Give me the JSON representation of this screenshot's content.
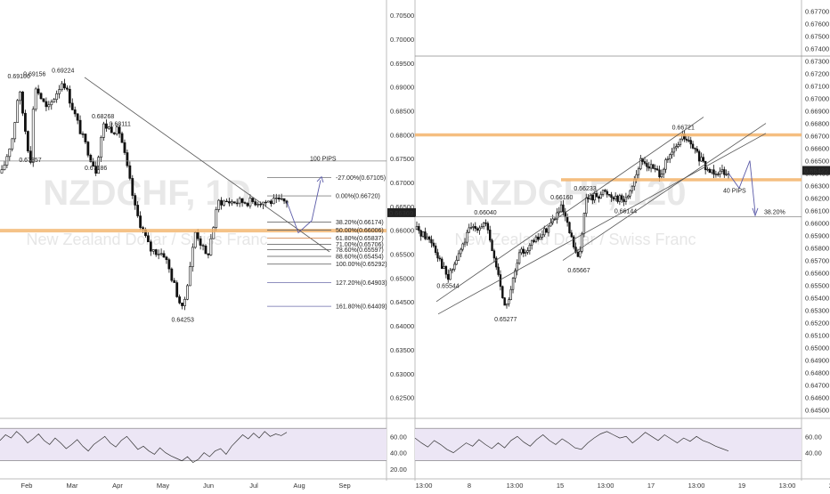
{
  "chart_data": [
    {
      "type": "candlestick",
      "symbol_watermark": "NZDCHF, 1D",
      "name_watermark": "New Zealand Dollar / Swiss Franc",
      "x_ticks": [
        "Feb",
        "Mar",
        "Apr",
        "May",
        "Jun",
        "Jul",
        "Aug",
        "Sep"
      ],
      "y_ticks": [
        "0.70500",
        "0.70000",
        "0.69500",
        "0.69000",
        "0.68500",
        "0.68000",
        "0.67500",
        "0.67000",
        "0.66500",
        "0.66000",
        "0.65500",
        "0.65000",
        "0.64500",
        "0.64000",
        "0.63500",
        "0.63000",
        "0.62500"
      ],
      "ylim": [
        0.6212,
        0.7082
      ],
      "last_price": "0.66369",
      "swing_labels": [
        {
          "text": "0.69106",
          "t": 0.06,
          "y": 0.69106
        },
        {
          "text": "0.69156",
          "t": 0.115,
          "y": 0.69156
        },
        {
          "text": "0.69224",
          "t": 0.215,
          "y": 0.69224
        },
        {
          "text": "0.68268",
          "t": 0.355,
          "y": 0.68268
        },
        {
          "text": "0.68111",
          "t": 0.415,
          "y": 0.68111
        },
        {
          "text": "0.67357",
          "t": 0.1,
          "y": 0.67357
        },
        {
          "text": "0.67186",
          "t": 0.33,
          "y": 0.67186
        },
        {
          "text": "0.64253",
          "t": 0.635,
          "y": 0.64253
        }
      ],
      "fib_levels": [
        {
          "text": "-27.00%(0.67105)",
          "y": 0.67105
        },
        {
          "text": "0.00%(0.66720)",
          "y": 0.6672
        },
        {
          "text": "38.20%(0.66174)",
          "y": 0.66174
        },
        {
          "text": "50.00%(0.66006)",
          "y": 0.66006
        },
        {
          "text": "61.80%(0.65837)",
          "y": 0.65837
        },
        {
          "text": "71.00%(0.65706)",
          "y": 0.65706
        },
        {
          "text": "78.60%(0.65597)",
          "y": 0.65597
        },
        {
          "text": "88.60%(0.65454)",
          "y": 0.65454
        },
        {
          "text": "100.00%(0.65292)",
          "y": 0.65292
        },
        {
          "text": "127.20%(0.64903)",
          "y": 0.64903
        },
        {
          "text": "161.80%(0.64409)",
          "y": 0.64409
        }
      ],
      "annotation": "100 PIPS",
      "rsi_ticks": [
        "60.00",
        "40.00",
        "20.00"
      ],
      "rsi_series": [
        55,
        62,
        58,
        66,
        60,
        52,
        57,
        63,
        55,
        50,
        58,
        52,
        45,
        50,
        56,
        48,
        42,
        50,
        55,
        60,
        52,
        47,
        55,
        60,
        52,
        44,
        48,
        42,
        38,
        46,
        40,
        36,
        33,
        30,
        35,
        28,
        32,
        40,
        35,
        42,
        45,
        38,
        48,
        55,
        62,
        57,
        64,
        58,
        66,
        60,
        63,
        61,
        65
      ]
    },
    {
      "type": "candlestick",
      "symbol_watermark": "NZDCHF, 120",
      "name_watermark": "New Zealand Dollar / Swiss Franc",
      "x_ticks": [
        "13:00",
        "8",
        "13:00",
        "15",
        "13:00",
        "17",
        "13:00",
        "19",
        "13:00",
        "22"
      ],
      "y_ticks": [
        "0.67700",
        "0.67600",
        "0.67500",
        "0.67400",
        "0.67300",
        "0.67200",
        "0.67100",
        "0.67000",
        "0.66900",
        "0.66800",
        "0.66700",
        "0.66600",
        "0.66500",
        "0.66400",
        "0.66300",
        "0.66200",
        "0.66100",
        "0.66000",
        "0.65900",
        "0.65800",
        "0.65700",
        "0.65600",
        "0.65500",
        "0.65400",
        "0.65300",
        "0.65200",
        "0.65100",
        "0.65000",
        "0.64900",
        "0.64800",
        "0.64700",
        "0.64600",
        "0.64500"
      ],
      "ylim": [
        0.6444,
        0.6779
      ],
      "last_price": "0.66422",
      "swing_labels": [
        {
          "text": "0.66040",
          "t": 0.22,
          "y": 0.6604
        },
        {
          "text": "0.65544",
          "t": 0.1,
          "y": 0.65544
        },
        {
          "text": "0.65277",
          "t": 0.285,
          "y": 0.65277
        },
        {
          "text": "0.66160",
          "t": 0.465,
          "y": 0.6616
        },
        {
          "text": "0.66233",
          "t": 0.54,
          "y": 0.66233
        },
        {
          "text": "0.65667",
          "t": 0.52,
          "y": 0.65667
        },
        {
          "text": "0.66144",
          "t": 0.67,
          "y": 0.66144
        },
        {
          "text": "0.66721",
          "t": 0.855,
          "y": 0.66721
        }
      ],
      "annotation": "40 PIPS",
      "retracement": "38.20%",
      "rsi_ticks": [
        "60.00",
        "40.00"
      ],
      "rsi_series": [
        58,
        52,
        47,
        55,
        50,
        44,
        40,
        46,
        52,
        48,
        56,
        50,
        45,
        52,
        46,
        55,
        60,
        53,
        48,
        56,
        62,
        55,
        50,
        57,
        52,
        46,
        44,
        52,
        58,
        63,
        66,
        62,
        58,
        60,
        52,
        58,
        65,
        60,
        55,
        62,
        57,
        52,
        58,
        54,
        60,
        55,
        52,
        48,
        45,
        42
      ]
    }
  ]
}
